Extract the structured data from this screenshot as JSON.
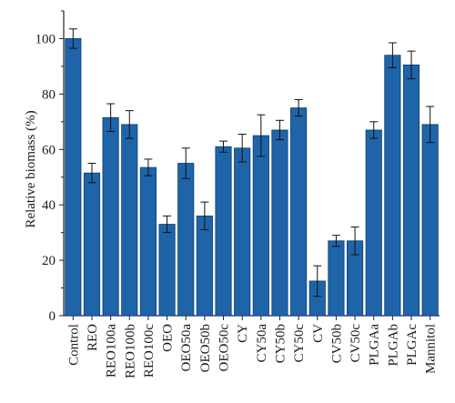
{
  "chart_data": {
    "type": "bar",
    "title": "",
    "xlabel": "",
    "ylabel": "Relative biomass (%)",
    "ylim": [
      0,
      110
    ],
    "yticks": [
      0,
      20,
      40,
      60,
      80,
      100
    ],
    "grid": false,
    "legend": "none",
    "bar_color": "#1f64a8",
    "categories": [
      "Control",
      "REO",
      "REO100a",
      "REO100b",
      "REO100c",
      "OEO",
      "OEO50a",
      "OEO50b",
      "OEO50c",
      "CY",
      "CY50a",
      "CY50b",
      "CY50c",
      "CV",
      "CV50b",
      "CV50c",
      "PLGAa",
      "PLGAb",
      "PLGAc",
      "Mannitol"
    ],
    "values": [
      100,
      51.5,
      71.5,
      69,
      53.5,
      33,
      55,
      36,
      61,
      60.5,
      65,
      67,
      75,
      12.5,
      27,
      27,
      67,
      94,
      90.5,
      69
    ],
    "errors": [
      3.5,
      3.5,
      5,
      5,
      3,
      3,
      5.5,
      5,
      2,
      5,
      7.5,
      3.5,
      3,
      5.5,
      2,
      5,
      3,
      4.5,
      5,
      6.5
    ]
  }
}
